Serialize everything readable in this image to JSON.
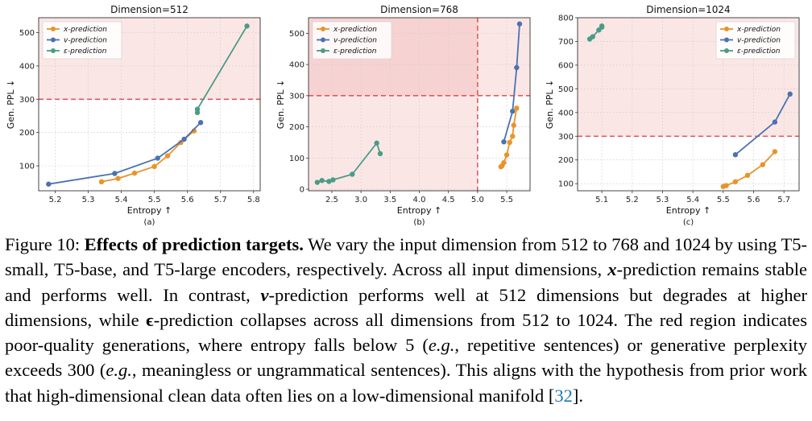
{
  "chart_data": [
    {
      "type": "line",
      "title": "Dimension=512",
      "sublabel": "(a)",
      "xlabel": "Entropy ↑",
      "ylabel": "Gen. PPL ↓",
      "xlim": [
        5.15,
        5.82
      ],
      "ylim": [
        25,
        545
      ],
      "xticks": [
        "5.2",
        "5.3",
        "5.4",
        "5.5",
        "5.6",
        "5.7",
        "5.8"
      ],
      "yticks": [
        "100",
        "200",
        "300",
        "400",
        "500"
      ],
      "bad_region": "ppl > 300",
      "threshold_ppl": 300,
      "legend": "top-left",
      "series": [
        {
          "name": "x-prediction",
          "color": "#e8942b",
          "x": [
            5.34,
            5.39,
            5.44,
            5.5,
            5.54,
            5.58,
            5.62
          ],
          "y": [
            52,
            62,
            78,
            98,
            130,
            170,
            205
          ]
        },
        {
          "name": "v-prediction",
          "color": "#4c72b0",
          "x": [
            5.18,
            5.38,
            5.51,
            5.59,
            5.64
          ],
          "y": [
            45,
            77,
            123,
            180,
            230
          ]
        },
        {
          "name": "ε-prediction",
          "color": "#4a9c86",
          "x": [
            5.63,
            5.63,
            5.78
          ],
          "y": [
            260,
            270,
            520
          ]
        }
      ]
    },
    {
      "type": "line",
      "title": "Dimension=768",
      "sublabel": "(b)",
      "xlabel": "Entropy ↑",
      "ylabel": "Gen. PPL ↓",
      "xlim": [
        2.1,
        5.9
      ],
      "ylim": [
        -5,
        550
      ],
      "xticks": [
        "2.5",
        "3.0",
        "3.5",
        "4.0",
        "4.5",
        "5.0",
        "5.5"
      ],
      "yticks": [
        "0",
        "100",
        "200",
        "300",
        "400",
        "500"
      ],
      "bad_region": "entropy < 5 or ppl > 300",
      "threshold_ppl": 300,
      "threshold_entropy": 5.0,
      "legend": "top-left",
      "series": [
        {
          "name": "x-prediction",
          "color": "#e8942b",
          "x": [
            5.4,
            5.42,
            5.45,
            5.5,
            5.55,
            5.6,
            5.62,
            5.67
          ],
          "y": [
            72,
            75,
            85,
            110,
            150,
            170,
            205,
            260
          ]
        },
        {
          "name": "v-prediction",
          "color": "#4c72b0",
          "x": [
            5.45,
            5.6,
            5.67,
            5.72
          ],
          "y": [
            152,
            250,
            390,
            530
          ]
        },
        {
          "name": "ε-prediction",
          "color": "#4a9c86",
          "x": [
            2.25,
            2.33,
            2.45,
            2.52,
            2.85,
            3.27,
            3.33
          ],
          "y": [
            22,
            28,
            25,
            30,
            48,
            148,
            114
          ]
        }
      ]
    },
    {
      "type": "line",
      "title": "Dimension=1024",
      "sublabel": "(c)",
      "xlabel": "Entropy ↑",
      "ylabel": "Gen. PPL ↓",
      "xlim": [
        5.02,
        5.75
      ],
      "ylim": [
        70,
        800
      ],
      "xticks": [
        "5.1",
        "5.2",
        "5.3",
        "5.4",
        "5.5",
        "5.6",
        "5.7"
      ],
      "yticks": [
        "100",
        "200",
        "300",
        "400",
        "500",
        "600",
        "700",
        "800"
      ],
      "bad_region": "ppl > 300",
      "threshold_ppl": 300,
      "legend": "top-right",
      "series": [
        {
          "name": "x-prediction",
          "color": "#e8942b",
          "x": [
            5.5,
            5.51,
            5.54,
            5.58,
            5.63,
            5.67
          ],
          "y": [
            88,
            92,
            108,
            135,
            180,
            235
          ]
        },
        {
          "name": "v-prediction",
          "color": "#4c72b0",
          "x": [
            5.54,
            5.67,
            5.72
          ],
          "y": [
            222,
            360,
            478
          ]
        },
        {
          "name": "ε-prediction",
          "color": "#4a9c86",
          "x": [
            5.06,
            5.07,
            5.09,
            5.1,
            5.1
          ],
          "y": [
            710,
            720,
            748,
            760,
            765
          ]
        }
      ]
    }
  ],
  "caption": {
    "label": "Figure 10: ",
    "bold_title": "Effects of prediction targets.",
    "part1": " We vary the input dimension from 512 to 768 and 1024 by using T5-small, T5-base, and T5-large encoders, respectively.  Across all input dimensions, ",
    "x_sym": "x",
    "part2": "-prediction remains stable and performs well.  In contrast, ",
    "v_sym": "v",
    "part3": "-prediction performs well at 512 dimensions but degrades at higher dimensions, while ",
    "eps_sym": "ϵ",
    "part4": "-prediction collapses across all dimensions from 512 to 1024. The red region indicates poor-quality generations, where entropy falls below 5 (",
    "eg1": "e.g.",
    "part5": ", repetitive sentences) or generative perplexity exceeds 300 (",
    "eg2": "e.g.",
    "part6": ", meaningless or ungrammatical sentences). This aligns with the hypothesis from prior work that high-dimensional clean data often lies on a low-dimensional manifold [",
    "ref": "32",
    "part7": "]."
  }
}
